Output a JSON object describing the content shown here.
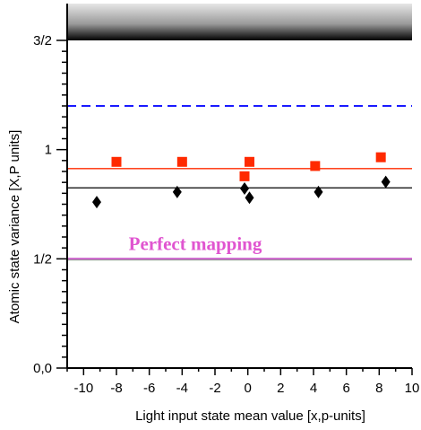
{
  "chart_data": {
    "type": "scatter",
    "title": "",
    "xlabel": "Light input state mean value  [x,p-units]",
    "ylabel": "Atomic state variance  [X,P units]",
    "xlim": [
      -11,
      10
    ],
    "ylim": [
      0,
      1.5
    ],
    "x_ticks": [
      "-10",
      "-8",
      "-6",
      "-4",
      "-2",
      "0",
      "2",
      "4",
      "6",
      "8",
      "10"
    ],
    "x_tick_values": [
      -10,
      -8,
      -6,
      -4,
      -2,
      0,
      2,
      4,
      6,
      8,
      10
    ],
    "y_ticks": [
      "0,0",
      "1/2",
      "1",
      "3/2"
    ],
    "y_tick_values": [
      0,
      0.5,
      1,
      1.5
    ],
    "grid": false,
    "series": [
      {
        "marker": "square",
        "color": "#ff2a00",
        "x": [
          -8,
          -4,
          -0.2,
          0.1,
          4.1,
          8.1
        ],
        "y": [
          0.944,
          0.944,
          0.878,
          0.944,
          0.925,
          0.965
        ]
      },
      {
        "marker": "diamond",
        "color": "#000000",
        "x": [
          -9.2,
          -4.3,
          -0.2,
          0.1,
          4.3,
          8.4
        ],
        "y": [
          0.76,
          0.806,
          0.822,
          0.78,
          0.806,
          0.852
        ]
      }
    ],
    "reference_lines": [
      {
        "y": 1.2,
        "style": "dashed",
        "color": "#1a1aff"
      },
      {
        "y": 0.913,
        "style": "solid",
        "color": "#ff2a00"
      },
      {
        "y": 0.825,
        "style": "solid",
        "color": "#000000"
      },
      {
        "y": 0.5,
        "style": "solid",
        "color": "#cc66cc"
      }
    ],
    "annotations": [
      {
        "text": "Perfect mapping",
        "x": -3.2,
        "y": 0.54,
        "color": "#e055d0"
      }
    ]
  }
}
